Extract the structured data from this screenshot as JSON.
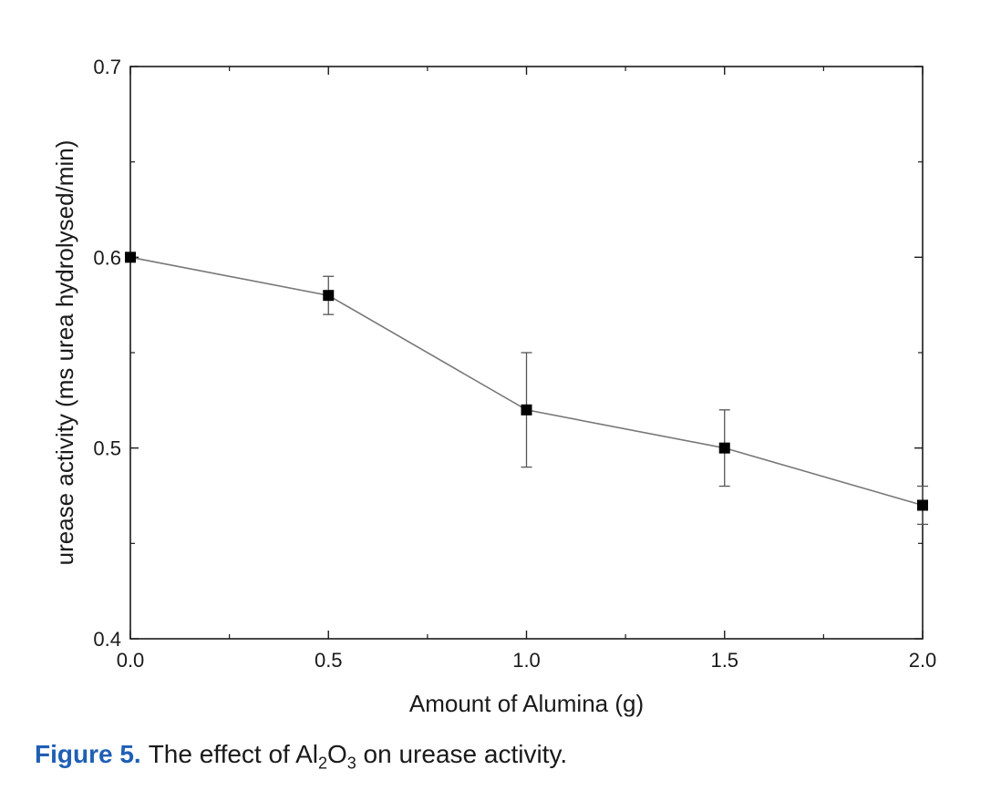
{
  "chart_data": {
    "type": "line",
    "xlabel": "Amount of Alumina (g)",
    "ylabel": "urease activity (ms urea hydrolysed/min)",
    "xlim": [
      0.0,
      2.0
    ],
    "ylim": [
      0.4,
      0.7
    ],
    "x_ticks": [
      "0.0",
      "0.5",
      "1.0",
      "1.5",
      "2.0"
    ],
    "y_ticks": [
      "0.4",
      "0.5",
      "0.6",
      "0.7"
    ],
    "grid": false,
    "series": [
      {
        "x": [
          0.0,
          0.5,
          1.0,
          1.5,
          2.0
        ],
        "y": [
          0.6,
          0.58,
          0.52,
          0.5,
          0.47
        ],
        "y_err_low": [
          0.6,
          0.57,
          0.49,
          0.48,
          0.46
        ],
        "y_err_high": [
          0.6,
          0.59,
          0.55,
          0.52,
          0.48
        ],
        "marker": "square",
        "line_color": "#777777",
        "marker_color": "#000000"
      }
    ]
  },
  "caption": {
    "label": "Figure 5.",
    "text_before": "The effect of Al",
    "sub1": "2",
    "text_mid": "O",
    "sub2": "3",
    "text_after": " on urease activity.",
    "label_color": "#1f5fb5"
  }
}
